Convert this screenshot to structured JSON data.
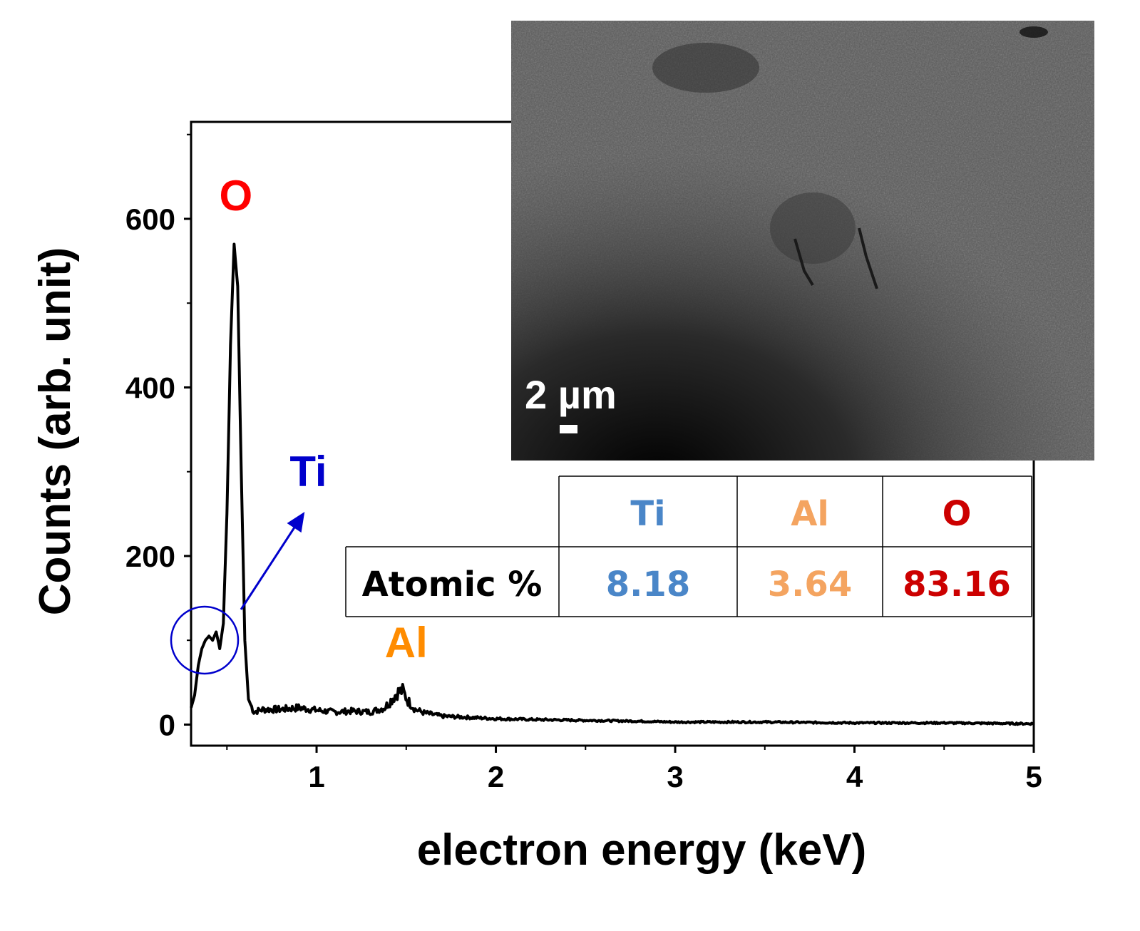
{
  "chart_data": {
    "type": "line",
    "xlabel": "electron energy (keV)",
    "ylabel": "Counts (arb. unit)",
    "xlim": [
      0.3,
      5
    ],
    "ylim": [
      -25,
      715
    ],
    "x_ticks": [
      "1",
      "2",
      "3",
      "4",
      "5"
    ],
    "y_ticks": [
      "0",
      "200",
      "400",
      "600"
    ],
    "grid": false,
    "series": [
      {
        "color": "#000000",
        "x": [
          0.3,
          0.32,
          0.34,
          0.36,
          0.38,
          0.4,
          0.42,
          0.44,
          0.46,
          0.48,
          0.5,
          0.52,
          0.54,
          0.56,
          0.58,
          0.6,
          0.62,
          0.65,
          0.7,
          0.8,
          0.9,
          1.0,
          1.1,
          1.2,
          1.3,
          1.38,
          1.42,
          1.45,
          1.48,
          1.51,
          1.55,
          1.6,
          1.7,
          1.8,
          2.0,
          2.2,
          2.5,
          2.8,
          3.0,
          3.5,
          4.0,
          4.5,
          5.0
        ],
        "y": [
          20,
          35,
          70,
          90,
          100,
          105,
          100,
          110,
          90,
          120,
          250,
          450,
          570,
          520,
          300,
          100,
          30,
          15,
          18,
          18,
          20,
          17,
          15,
          16,
          15,
          20,
          30,
          38,
          40,
          28,
          18,
          14,
          10,
          9,
          7,
          6,
          5,
          4,
          3,
          3,
          2,
          2,
          1
        ]
      }
    ],
    "annotations": [
      {
        "text": "O",
        "x": 0.55,
        "y": 610,
        "color": "#ff0000"
      },
      {
        "text": "Ti",
        "x": 0.85,
        "y": 283,
        "color": "#0000cc"
      },
      {
        "text": "Al",
        "x": 1.5,
        "y": 80,
        "color": "#ff8c00"
      }
    ]
  },
  "inset": {
    "scale_bar_label": "2 µm"
  },
  "table": {
    "headers": [
      "Ti",
      "Al",
      "O"
    ],
    "row_label": "Atomic %",
    "values": [
      "8.18",
      "3.64",
      "83.16"
    ],
    "colors": [
      "#4a86c8",
      "#f4a460",
      "#cc0000"
    ]
  }
}
